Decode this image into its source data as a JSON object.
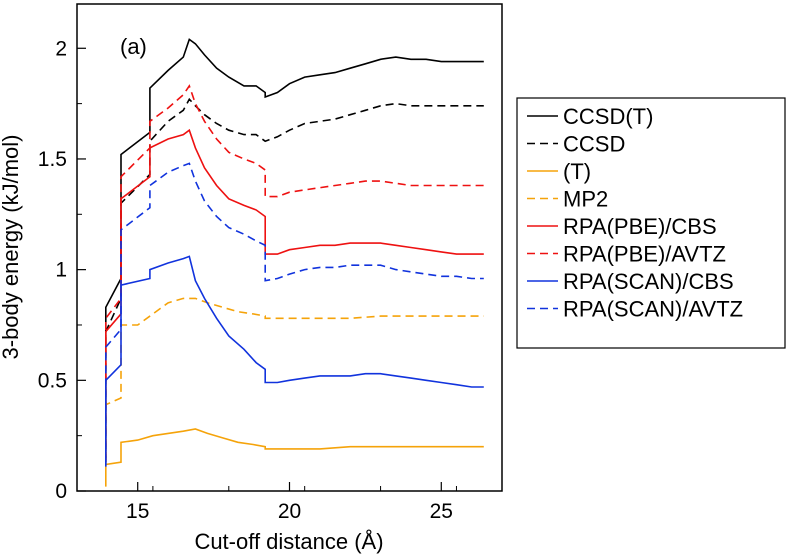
{
  "chart_data": {
    "type": "line",
    "title": "",
    "panel_label": "(a)",
    "xlabel": "Cut-off distance (Å)",
    "ylabel": "3-body energy (kJ/mol)",
    "xlim": [
      13,
      27
    ],
    "ylim": [
      0,
      2.2
    ],
    "xticks": [
      15,
      20,
      25
    ],
    "yticks": [
      0,
      0.5,
      1,
      1.5,
      2
    ],
    "xtick_labels": [
      "15",
      "20",
      "25"
    ],
    "ytick_labels": [
      "0",
      "0.5",
      "1",
      "1.5",
      "2"
    ],
    "grid": false,
    "legend_position": "right, outside plot",
    "series": [
      {
        "name": "CCSD(T)",
        "color": "#000000",
        "dash": "solid",
        "x": [
          13.95,
          13.95,
          14.45,
          14.45,
          15.4,
          15.4,
          16.0,
          16.5,
          16.7,
          16.9,
          17.2,
          17.6,
          18.0,
          18.5,
          18.9,
          19.2,
          19.2,
          19.6,
          20.0,
          20.5,
          21.0,
          21.5,
          22.0,
          22.5,
          23.0,
          23.5,
          24.0,
          24.5,
          25.0,
          25.5,
          26.0,
          26.4
        ],
        "y": [
          0.15,
          0.83,
          0.96,
          1.52,
          1.62,
          1.82,
          1.9,
          1.96,
          2.04,
          2.02,
          1.97,
          1.91,
          1.87,
          1.83,
          1.83,
          1.8,
          1.78,
          1.8,
          1.84,
          1.87,
          1.88,
          1.89,
          1.91,
          1.93,
          1.95,
          1.96,
          1.95,
          1.95,
          1.94,
          1.94,
          1.94,
          1.94
        ]
      },
      {
        "name": "CCSD",
        "color": "#000000",
        "dash": "dashed",
        "x": [
          13.95,
          13.95,
          14.45,
          14.45,
          15.4,
          15.4,
          16.0,
          16.5,
          16.7,
          16.9,
          17.2,
          17.6,
          18.0,
          18.5,
          18.9,
          19.2,
          19.2,
          19.6,
          20.0,
          20.5,
          21.0,
          21.5,
          22.0,
          22.5,
          23.0,
          23.5,
          24.0,
          24.5,
          25.0,
          25.5,
          26.0,
          26.4
        ],
        "y": [
          0.13,
          0.72,
          0.87,
          1.3,
          1.43,
          1.58,
          1.67,
          1.72,
          1.77,
          1.74,
          1.7,
          1.66,
          1.63,
          1.61,
          1.61,
          1.58,
          1.58,
          1.6,
          1.63,
          1.66,
          1.67,
          1.68,
          1.7,
          1.72,
          1.74,
          1.75,
          1.74,
          1.74,
          1.74,
          1.74,
          1.74,
          1.74
        ]
      },
      {
        "name": "(T)",
        "color": "#f5a30a",
        "dash": "solid",
        "x": [
          13.95,
          13.95,
          14.45,
          14.45,
          15.0,
          15.5,
          16.0,
          16.5,
          16.9,
          17.3,
          17.8,
          18.3,
          18.8,
          19.2,
          19.2,
          20.0,
          21.0,
          22.0,
          23.0,
          24.0,
          25.0,
          26.0,
          26.4
        ],
        "y": [
          0.02,
          0.12,
          0.13,
          0.22,
          0.23,
          0.25,
          0.26,
          0.27,
          0.28,
          0.26,
          0.24,
          0.22,
          0.21,
          0.2,
          0.19,
          0.19,
          0.19,
          0.2,
          0.2,
          0.2,
          0.2,
          0.2,
          0.2
        ]
      },
      {
        "name": "MP2",
        "color": "#f5a30a",
        "dash": "dashed",
        "x": [
          13.95,
          13.95,
          14.45,
          14.45,
          15.0,
          15.5,
          16.0,
          16.5,
          16.9,
          17.3,
          17.8,
          18.3,
          18.8,
          19.2,
          19.2,
          20.0,
          21.0,
          22.0,
          23.0,
          24.0,
          25.0,
          26.0,
          26.4
        ],
        "y": [
          0.14,
          0.39,
          0.42,
          0.75,
          0.75,
          0.8,
          0.85,
          0.87,
          0.87,
          0.85,
          0.83,
          0.81,
          0.8,
          0.79,
          0.78,
          0.78,
          0.78,
          0.78,
          0.79,
          0.79,
          0.79,
          0.79,
          0.79
        ]
      },
      {
        "name": "RPA(PBE)/CBS",
        "color": "#ee1111",
        "dash": "solid",
        "x": [
          13.95,
          13.95,
          14.45,
          14.45,
          15.4,
          15.4,
          16.0,
          16.5,
          16.7,
          16.9,
          17.2,
          17.6,
          18.0,
          18.5,
          18.9,
          19.2,
          19.2,
          19.6,
          20.0,
          20.5,
          21.0,
          21.5,
          22.0,
          22.5,
          23.0,
          23.5,
          24.0,
          24.5,
          25.0,
          25.5,
          26.0,
          26.4
        ],
        "y": [
          0.13,
          0.72,
          0.8,
          1.32,
          1.42,
          1.55,
          1.59,
          1.61,
          1.63,
          1.55,
          1.46,
          1.38,
          1.32,
          1.29,
          1.27,
          1.24,
          1.07,
          1.07,
          1.09,
          1.1,
          1.11,
          1.11,
          1.12,
          1.12,
          1.12,
          1.11,
          1.1,
          1.09,
          1.08,
          1.07,
          1.07,
          1.07
        ]
      },
      {
        "name": "RPA(PBE)/AVTZ",
        "color": "#ee1111",
        "dash": "dashed",
        "x": [
          13.95,
          13.95,
          14.45,
          14.45,
          15.4,
          15.4,
          16.0,
          16.5,
          16.7,
          16.9,
          17.2,
          17.6,
          18.0,
          18.5,
          18.9,
          19.2,
          19.2,
          19.6,
          20.0,
          20.5,
          21.0,
          21.5,
          22.0,
          22.5,
          23.0,
          23.5,
          24.0,
          24.5,
          25.0,
          25.5,
          26.0,
          26.4
        ],
        "y": [
          0.14,
          0.78,
          0.87,
          1.42,
          1.55,
          1.67,
          1.73,
          1.79,
          1.83,
          1.75,
          1.67,
          1.59,
          1.53,
          1.5,
          1.48,
          1.45,
          1.33,
          1.33,
          1.35,
          1.36,
          1.37,
          1.38,
          1.39,
          1.4,
          1.4,
          1.39,
          1.38,
          1.38,
          1.38,
          1.38,
          1.38,
          1.38
        ]
      },
      {
        "name": "RPA(SCAN)/CBS",
        "color": "#1133dd",
        "dash": "solid",
        "x": [
          13.95,
          13.95,
          14.45,
          14.45,
          15.4,
          15.4,
          16.0,
          16.5,
          16.7,
          16.9,
          17.2,
          17.6,
          18.0,
          18.5,
          18.9,
          19.2,
          19.2,
          19.6,
          20.0,
          20.5,
          21.0,
          21.5,
          22.0,
          22.5,
          23.0,
          23.5,
          24.0,
          24.5,
          25.0,
          25.5,
          26.0,
          26.4
        ],
        "y": [
          0.11,
          0.5,
          0.57,
          0.93,
          0.96,
          1.0,
          1.03,
          1.05,
          1.06,
          0.95,
          0.87,
          0.78,
          0.7,
          0.64,
          0.58,
          0.55,
          0.49,
          0.49,
          0.5,
          0.51,
          0.52,
          0.52,
          0.52,
          0.53,
          0.53,
          0.52,
          0.51,
          0.5,
          0.49,
          0.48,
          0.47,
          0.47
        ]
      },
      {
        "name": "RPA(SCAN)/AVTZ",
        "color": "#1133dd",
        "dash": "dashed",
        "x": [
          13.95,
          13.95,
          14.45,
          14.45,
          15.4,
          15.4,
          16.0,
          16.5,
          16.7,
          16.9,
          17.2,
          17.6,
          18.0,
          18.5,
          18.9,
          19.2,
          19.2,
          19.6,
          20.0,
          20.5,
          21.0,
          21.5,
          22.0,
          22.5,
          23.0,
          23.5,
          24.0,
          24.5,
          25.0,
          25.5,
          26.0,
          26.4
        ],
        "y": [
          0.12,
          0.65,
          0.73,
          1.18,
          1.28,
          1.38,
          1.44,
          1.47,
          1.48,
          1.4,
          1.31,
          1.24,
          1.19,
          1.16,
          1.13,
          1.11,
          0.95,
          0.96,
          0.98,
          1.0,
          1.01,
          1.01,
          1.02,
          1.02,
          1.02,
          1.0,
          0.99,
          0.98,
          0.97,
          0.97,
          0.96,
          0.96
        ]
      }
    ]
  }
}
